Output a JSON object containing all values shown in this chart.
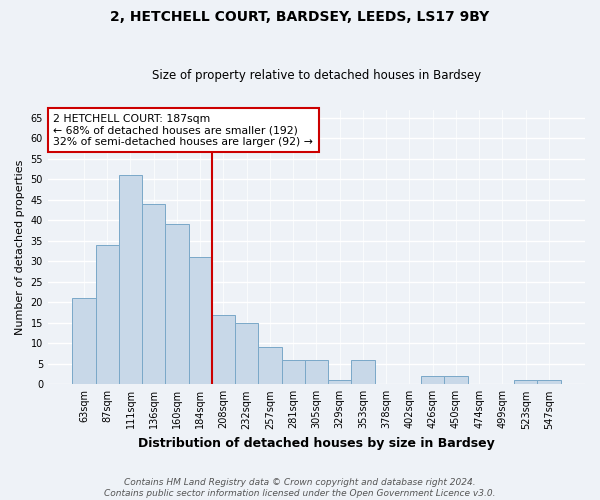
{
  "title_line1": "2, HETCHELL COURT, BARDSEY, LEEDS, LS17 9BY",
  "title_line2": "Size of property relative to detached houses in Bardsey",
  "xlabel": "Distribution of detached houses by size in Bardsey",
  "ylabel": "Number of detached properties",
  "bin_labels": [
    "63sqm",
    "87sqm",
    "111sqm",
    "136sqm",
    "160sqm",
    "184sqm",
    "208sqm",
    "232sqm",
    "257sqm",
    "281sqm",
    "305sqm",
    "329sqm",
    "353sqm",
    "378sqm",
    "402sqm",
    "426sqm",
    "450sqm",
    "474sqm",
    "499sqm",
    "523sqm",
    "547sqm"
  ],
  "bar_heights": [
    21,
    34,
    51,
    44,
    39,
    31,
    17,
    15,
    9,
    6,
    6,
    1,
    6,
    0,
    0,
    2,
    2,
    0,
    0,
    1,
    1
  ],
  "bar_color": "#c8d8e8",
  "bar_edge_color": "#7aa8c8",
  "vline_x": 5.5,
  "vline_color": "#cc0000",
  "annotation_text": "2 HETCHELL COURT: 187sqm\n← 68% of detached houses are smaller (192)\n32% of semi-detached houses are larger (92) →",
  "annotation_box_color": "#ffffff",
  "annotation_box_edge_color": "#cc0000",
  "ylim": [
    0,
    67
  ],
  "yticks": [
    0,
    5,
    10,
    15,
    20,
    25,
    30,
    35,
    40,
    45,
    50,
    55,
    60,
    65
  ],
  "footnote": "Contains HM Land Registry data © Crown copyright and database right 2024.\nContains public sector information licensed under the Open Government Licence v3.0.",
  "background_color": "#eef2f7",
  "grid_color": "#ffffff",
  "title1_fontsize": 10,
  "title2_fontsize": 8.5,
  "ylabel_fontsize": 8,
  "xlabel_fontsize": 9,
  "tick_fontsize": 7,
  "footnote_fontsize": 6.5
}
